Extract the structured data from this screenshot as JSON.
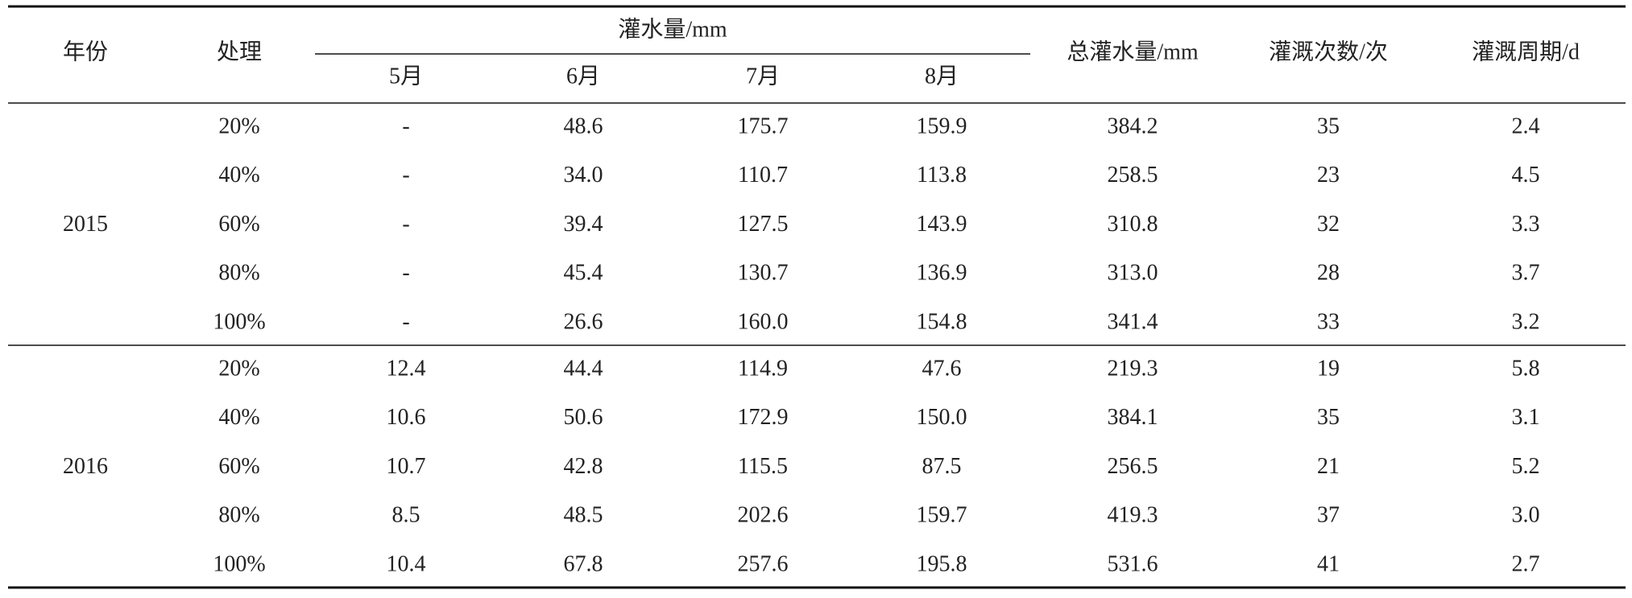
{
  "table": {
    "header": {
      "year": "年份",
      "treatment": "处理",
      "irrigation": "灌水量/mm",
      "months": [
        "5月",
        "6月",
        "7月",
        "8月"
      ],
      "total": "总灌水量/mm",
      "count": "灌溉次数/次",
      "cycle": "灌溉周期/d"
    },
    "groups": [
      {
        "year": "2015",
        "rows": [
          [
            "20%",
            "-",
            "48.6",
            "175.7",
            "159.9",
            "384.2",
            "35",
            "2.4"
          ],
          [
            "40%",
            "-",
            "34.0",
            "110.7",
            "113.8",
            "258.5",
            "23",
            "4.5"
          ],
          [
            "60%",
            "-",
            "39.4",
            "127.5",
            "143.9",
            "310.8",
            "32",
            "3.3"
          ],
          [
            "80%",
            "-",
            "45.4",
            "130.7",
            "136.9",
            "313.0",
            "28",
            "3.7"
          ],
          [
            "100%",
            "-",
            "26.6",
            "160.0",
            "154.8",
            "341.4",
            "33",
            "3.2"
          ]
        ]
      },
      {
        "year": "2016",
        "rows": [
          [
            "20%",
            "12.4",
            "44.4",
            "114.9",
            "47.6",
            "219.3",
            "19",
            "5.8"
          ],
          [
            "40%",
            "10.6",
            "50.6",
            "172.9",
            "150.0",
            "384.1",
            "35",
            "3.1"
          ],
          [
            "60%",
            "10.7",
            "42.8",
            "115.5",
            "87.5",
            "256.5",
            "21",
            "5.2"
          ],
          [
            "80%",
            "8.5",
            "48.5",
            "202.6",
            "159.7",
            "419.3",
            "37",
            "3.0"
          ],
          [
            "100%",
            "10.4",
            "67.8",
            "257.6",
            "195.8",
            "531.6",
            "41",
            "2.7"
          ]
        ]
      }
    ]
  }
}
